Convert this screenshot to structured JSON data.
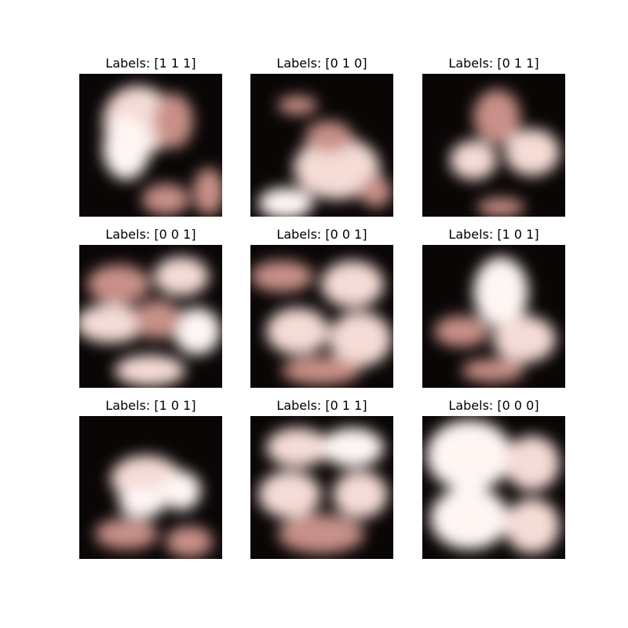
{
  "figure": {
    "panels": [
      {
        "title": "Labels: [1 1 1]",
        "tone": "dark"
      },
      {
        "title": "Labels: [0 1 0]",
        "tone": "mid"
      },
      {
        "title": "Labels: [0 1 1]",
        "tone": "dark"
      },
      {
        "title": "Labels: [0 0 1]",
        "tone": "light"
      },
      {
        "title": "Labels: [0 0 1]",
        "tone": "light"
      },
      {
        "title": "Labels: [1 0 1]",
        "tone": "dark"
      },
      {
        "title": "Labels: [1 0 1]",
        "tone": "mid"
      },
      {
        "title": "Labels: [0 1 1]",
        "tone": "light"
      },
      {
        "title": "Labels: [0 0 0]",
        "tone": "lightest"
      }
    ],
    "colors": {
      "dark": "#0a0606",
      "pink_mid": "#c89088",
      "pink_light": "#f5dcd6",
      "white": "#fff6f4"
    }
  }
}
